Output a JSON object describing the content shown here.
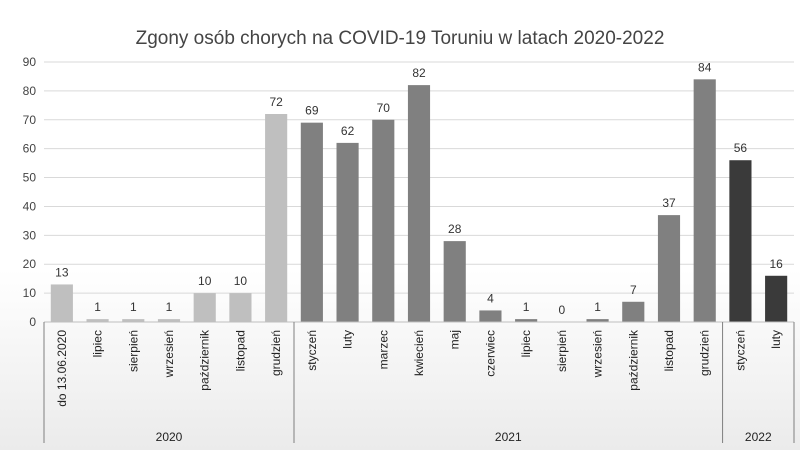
{
  "chart_data": {
    "type": "bar",
    "title": "Zgony osób chorych na COVID-19 Toruniu w latach 2020-2022",
    "xlabel": "",
    "ylabel": "",
    "ylim": [
      0,
      90
    ],
    "yticks": [
      0,
      10,
      20,
      30,
      40,
      50,
      60,
      70,
      80,
      90
    ],
    "grid": true,
    "legend": "none",
    "groups": [
      {
        "label": "2020",
        "color": "#bfbfbf",
        "categories": [
          "do 13.06.2020",
          "lipiec",
          "sierpień",
          "wrzesień",
          "październik",
          "listopad",
          "grudzień"
        ],
        "values": [
          13,
          1,
          1,
          1,
          10,
          10,
          72
        ]
      },
      {
        "label": "2021",
        "color": "#808080",
        "categories": [
          "styczeń",
          "luty",
          "marzec",
          "kwiecień",
          "maj",
          "czerwiec",
          "lipiec",
          "sierpień",
          "wrzesień",
          "październik",
          "listopad",
          "grudzień"
        ],
        "values": [
          69,
          62,
          70,
          82,
          28,
          4,
          1,
          0,
          1,
          7,
          37,
          84
        ]
      },
      {
        "label": "2022",
        "color": "#3a3a3a",
        "categories": [
          "styczeń",
          "luty"
        ],
        "values": [
          56,
          16
        ]
      }
    ]
  }
}
